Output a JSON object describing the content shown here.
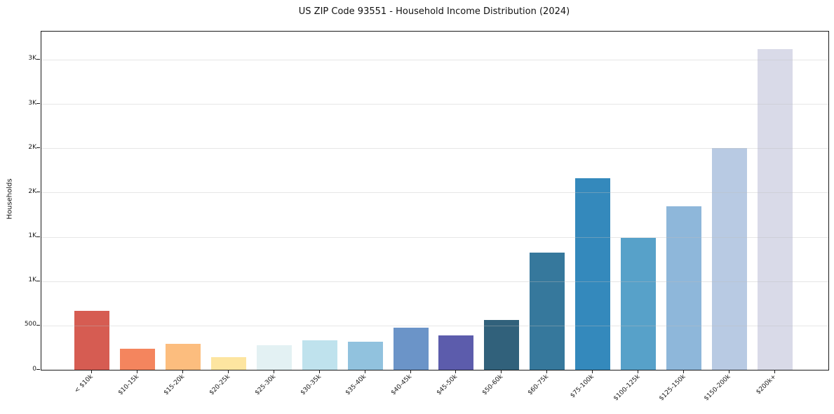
{
  "title": "US ZIP Code 93551 - Household Income Distribution (2024)",
  "chart_data": {
    "type": "bar",
    "title": "US ZIP Code 93551 - Household Income Distribution (2024)",
    "xlabel": "",
    "ylabel": "Households",
    "legend": "none",
    "grid": "horizontal",
    "background_color": "#ffffff",
    "spine_color": "#1a1a1a",
    "gridline_color": "#e6e6e6",
    "ylim": [
      0,
      3816
    ],
    "yticks": [
      {
        "value": 0,
        "label": "0"
      },
      {
        "value": 500,
        "label": "500"
      },
      {
        "value": 1000,
        "label": "1K"
      },
      {
        "value": 1500,
        "label": "1K"
      },
      {
        "value": 2000,
        "label": "2K"
      },
      {
        "value": 2500,
        "label": "2K"
      },
      {
        "value": 3000,
        "label": "3K"
      },
      {
        "value": 3500,
        "label": "3K"
      }
    ],
    "categories": [
      "< $10k",
      "$10-15k",
      "$15-20k",
      "$20-25k",
      "$25-30k",
      "$30-35k",
      "$35-40k",
      "$40-45k",
      "$45-50k",
      "$50-60k",
      "$60-75k",
      "$75-100k",
      "$100-125k",
      "$125-150k",
      "$150-200k",
      "$200k+"
    ],
    "values": [
      665,
      240,
      295,
      145,
      280,
      335,
      320,
      475,
      390,
      565,
      1325,
      2165,
      1490,
      1845,
      2505,
      3620
    ],
    "bar_colors": [
      "#d65c52",
      "#f4855e",
      "#fcbd7e",
      "#fde5a0",
      "#e3f1f3",
      "#bfe2ed",
      "#91c2de",
      "#6b94c8",
      "#5c5cac",
      "#31617b",
      "#36789c",
      "#3489bc",
      "#57a1c9",
      "#8eb7da",
      "#b8cae3",
      "#d9dae8"
    ]
  }
}
